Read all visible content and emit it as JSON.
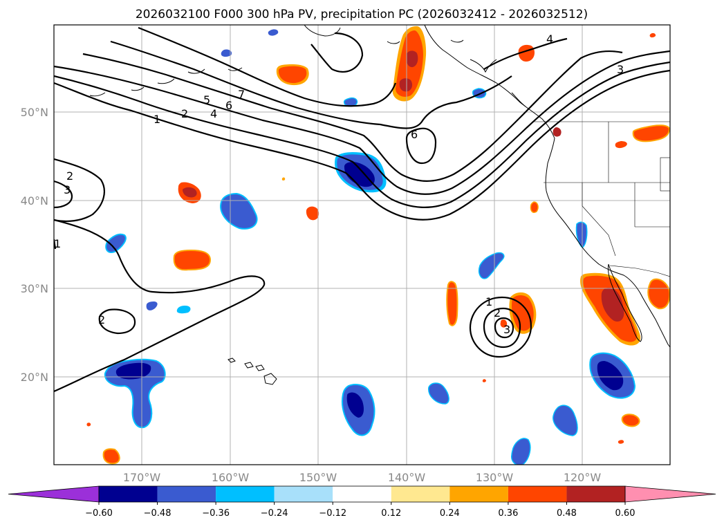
{
  "title": "2026032100 F000 300 hPa PV, precipitation PC (2026032412 - 2026032512)",
  "axes": {
    "lat_labels": [
      "50°N",
      "40°N",
      "30°N",
      "20°N"
    ],
    "lon_labels": [
      "170°W",
      "160°W",
      "150°W",
      "140°W",
      "130°W",
      "120°W"
    ]
  },
  "colorbar": {
    "ticks": [
      "−0.60",
      "−0.48",
      "−0.36",
      "−0.24",
      "−0.12",
      "0.12",
      "0.24",
      "0.36",
      "0.48",
      "0.60"
    ],
    "colors": [
      "#9b30d9",
      "#000090",
      "#3a5bd0",
      "#00bfff",
      "#a8e0fa",
      "#ffffff",
      "#ffe890",
      "#ffa500",
      "#ff4500",
      "#b22222",
      "#ff8fb0"
    ]
  },
  "contour_labels": {
    "c1a": "1",
    "c2a": "2",
    "c4a": "4",
    "c5a": "5",
    "c6a": "6",
    "c7a": "7",
    "c4b": "4",
    "c3b": "3",
    "c6b": "6",
    "c2w": "2",
    "c3w": "3",
    "c1w": "1",
    "c2s": "2",
    "c1e": "1",
    "c2e": "2",
    "c3e": "3"
  }
}
